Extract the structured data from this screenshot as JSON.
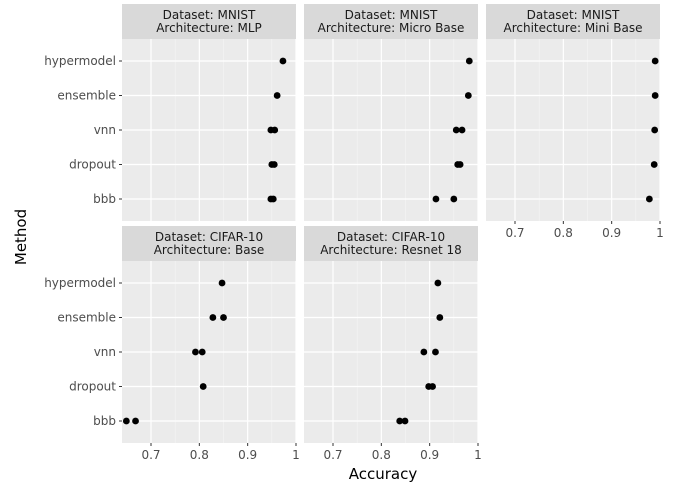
{
  "chart_data": {
    "type": "scatter",
    "xlabel": "Accuracy",
    "ylabel": "Method",
    "categories": [
      "hypermodel",
      "ensemble",
      "vnn",
      "dropout",
      "bbb"
    ],
    "xlim": [
      0.64,
      1.0
    ],
    "x_ticks": [
      {
        "value": 0.7,
        "label": "0.7"
      },
      {
        "value": 0.8,
        "label": "0.8"
      },
      {
        "value": 0.9,
        "label": "0.9"
      },
      {
        "value": 1.0,
        "label": "1"
      }
    ],
    "grid": true,
    "facets": [
      {
        "strip": [
          "Dataset: MNIST",
          "Architecture: MLP"
        ],
        "show_y_labels": true,
        "show_x_labels": false,
        "points": [
          {
            "method": "hypermodel",
            "accuracy": 0.973
          },
          {
            "method": "ensemble",
            "accuracy": 0.961
          },
          {
            "method": "vnn",
            "accuracy": 0.948
          },
          {
            "method": "vnn",
            "accuracy": 0.956
          },
          {
            "method": "dropout",
            "accuracy": 0.95
          },
          {
            "method": "dropout",
            "accuracy": 0.955
          },
          {
            "method": "bbb",
            "accuracy": 0.948
          },
          {
            "method": "bbb",
            "accuracy": 0.953
          }
        ]
      },
      {
        "strip": [
          "Dataset: MNIST",
          "Architecture: Micro Base"
        ],
        "show_y_labels": false,
        "show_x_labels": false,
        "points": [
          {
            "method": "hypermodel",
            "accuracy": 0.982
          },
          {
            "method": "ensemble",
            "accuracy": 0.98
          },
          {
            "method": "vnn",
            "accuracy": 0.955
          },
          {
            "method": "vnn",
            "accuracy": 0.967
          },
          {
            "method": "dropout",
            "accuracy": 0.958
          },
          {
            "method": "dropout",
            "accuracy": 0.963
          },
          {
            "method": "bbb",
            "accuracy": 0.913
          },
          {
            "method": "bbb",
            "accuracy": 0.95
          }
        ]
      },
      {
        "strip": [
          "Dataset: MNIST",
          "Architecture: Mini Base"
        ],
        "show_y_labels": false,
        "show_x_labels": true,
        "points": [
          {
            "method": "hypermodel",
            "accuracy": 0.99
          },
          {
            "method": "ensemble",
            "accuracy": 0.99
          },
          {
            "method": "vnn",
            "accuracy": 0.989
          },
          {
            "method": "dropout",
            "accuracy": 0.988
          },
          {
            "method": "bbb",
            "accuracy": 0.978
          }
        ]
      },
      {
        "strip": [
          "Dataset: CIFAR-10",
          "Architecture: Base"
        ],
        "show_y_labels": true,
        "show_x_labels": true,
        "points": [
          {
            "method": "hypermodel",
            "accuracy": 0.847
          },
          {
            "method": "ensemble",
            "accuracy": 0.828
          },
          {
            "method": "ensemble",
            "accuracy": 0.85
          },
          {
            "method": "vnn",
            "accuracy": 0.792
          },
          {
            "method": "vnn",
            "accuracy": 0.806
          },
          {
            "method": "dropout",
            "accuracy": 0.808
          },
          {
            "method": "bbb",
            "accuracy": 0.649
          },
          {
            "method": "bbb",
            "accuracy": 0.668
          }
        ]
      },
      {
        "strip": [
          "Dataset: CIFAR-10",
          "Architecture: Resnet 18"
        ],
        "show_y_labels": false,
        "show_x_labels": true,
        "points": [
          {
            "method": "hypermodel",
            "accuracy": 0.917
          },
          {
            "method": "ensemble",
            "accuracy": 0.921
          },
          {
            "method": "vnn",
            "accuracy": 0.888
          },
          {
            "method": "vnn",
            "accuracy": 0.912
          },
          {
            "method": "dropout",
            "accuracy": 0.898
          },
          {
            "method": "dropout",
            "accuracy": 0.906
          },
          {
            "method": "bbb",
            "accuracy": 0.838
          },
          {
            "method": "bbb",
            "accuracy": 0.849
          }
        ]
      }
    ]
  }
}
